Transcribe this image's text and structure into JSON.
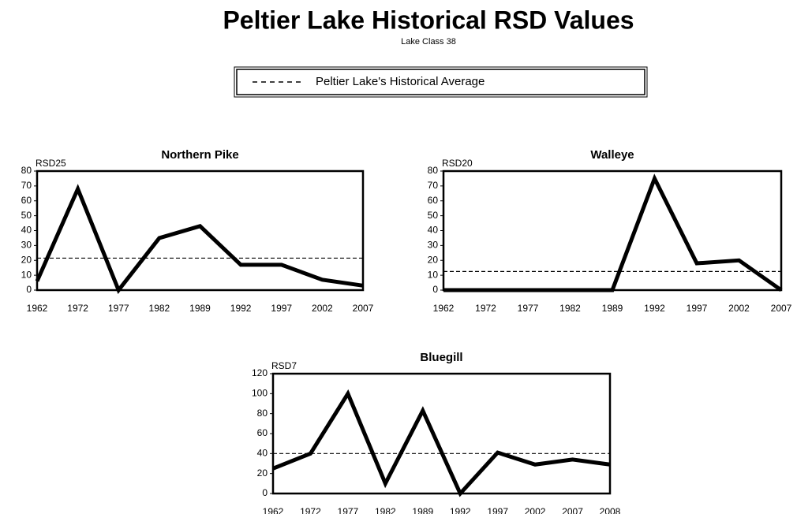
{
  "title": "Peltier Lake Historical RSD Values",
  "subtitle": "Lake Class 38",
  "legend": "Peltier Lake's Historical Average",
  "chart_data": [
    {
      "type": "line",
      "title": "Northern Pike",
      "y_label": "RSD25",
      "color": "#000000",
      "categories": [
        "1962",
        "1972",
        "1977",
        "1982",
        "1989",
        "1992",
        "1997",
        "2002",
        "2007"
      ],
      "values": [
        6,
        68,
        0,
        35,
        43,
        17,
        17,
        7,
        3
      ],
      "average": 21.5,
      "ylim": [
        0,
        80
      ],
      "yticks": [
        0,
        10,
        20,
        30,
        40,
        50,
        60,
        70,
        80
      ]
    },
    {
      "type": "line",
      "title": "Walleye",
      "y_label": "RSD20",
      "color": "#000000",
      "categories": [
        "1962",
        "1972",
        "1977",
        "1982",
        "1989",
        "1992",
        "1997",
        "2002",
        "2007"
      ],
      "values": [
        0,
        0,
        0,
        0,
        0,
        75,
        18,
        20,
        0
      ],
      "average": 12.5,
      "ylim": [
        0,
        80
      ],
      "yticks": [
        0,
        10,
        20,
        30,
        40,
        50,
        60,
        70,
        80
      ]
    },
    {
      "type": "line",
      "title": "Bluegill",
      "y_label": "RSD7",
      "color": "#000000",
      "categories": [
        "1962",
        "1972",
        "1977",
        "1982",
        "1989",
        "1992",
        "1997",
        "2002",
        "2007",
        "2008"
      ],
      "values": [
        25,
        40,
        100,
        10,
        83,
        0,
        41,
        29,
        34,
        29
      ],
      "average": 40,
      "ylim": [
        0,
        120
      ],
      "yticks": [
        0,
        20,
        40,
        60,
        80,
        100,
        120
      ]
    }
  ]
}
